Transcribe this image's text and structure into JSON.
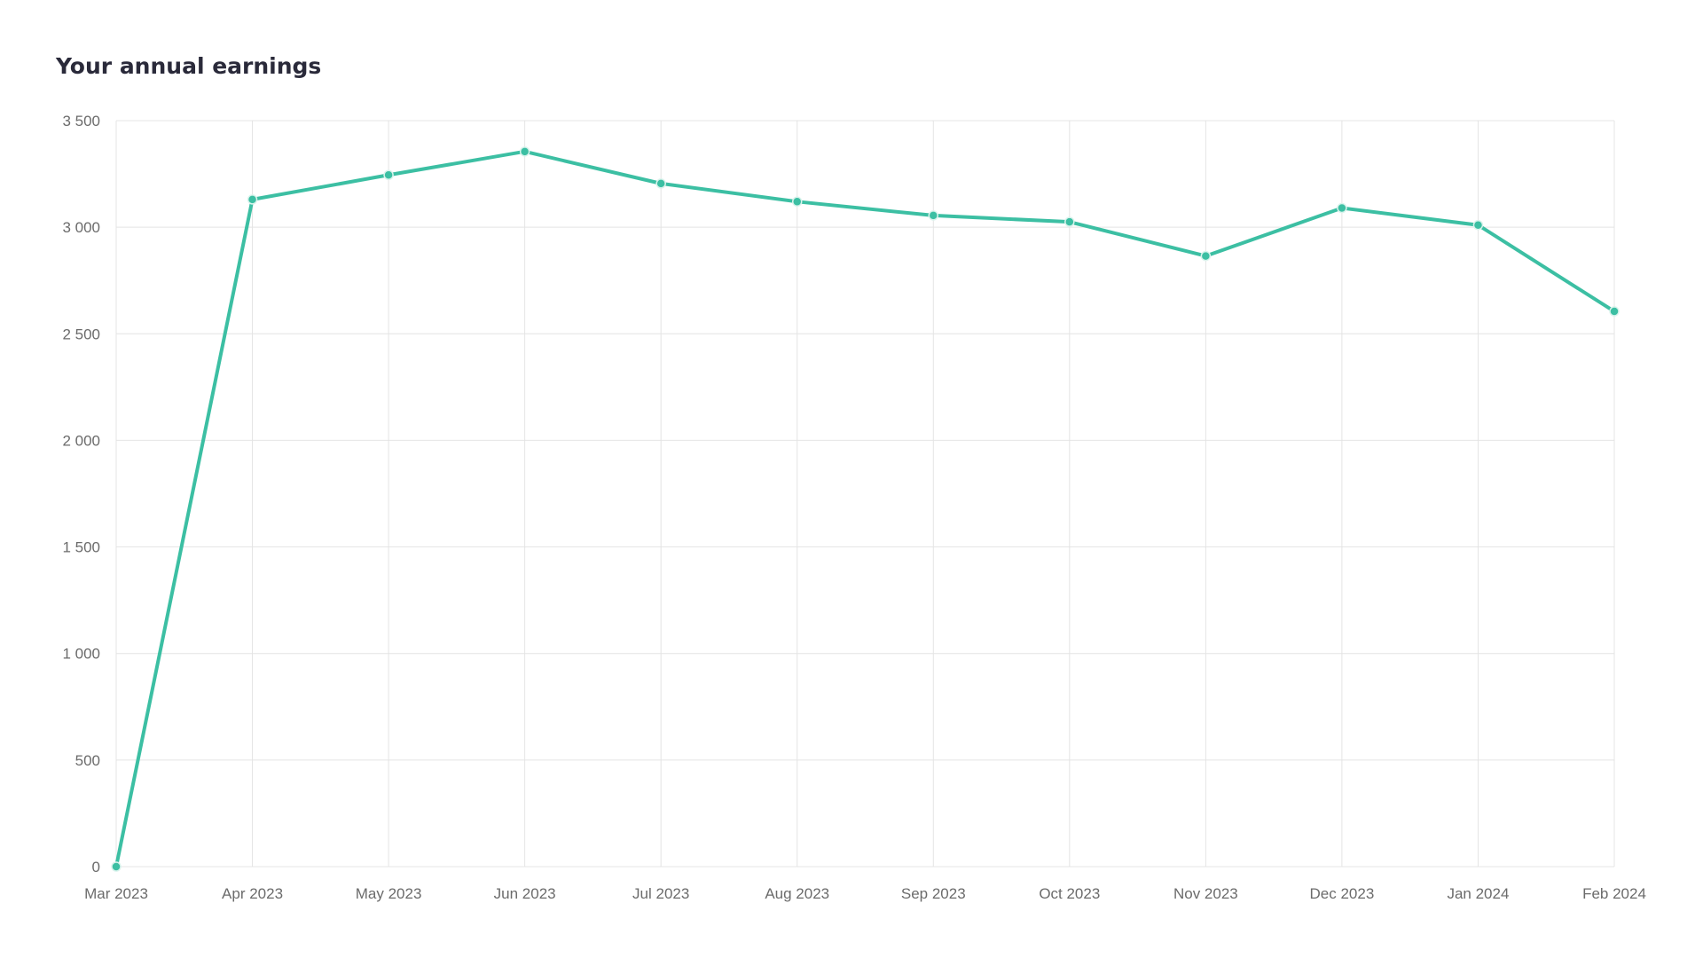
{
  "chart_data": {
    "type": "line",
    "title": "Your annual earnings",
    "categories": [
      "Mar 2023",
      "Apr 2023",
      "May 2023",
      "Jun 2023",
      "Jul 2023",
      "Aug 2023",
      "Sep 2023",
      "Oct 2023",
      "Nov 2023",
      "Dec 2023",
      "Jan 2024",
      "Feb 2024"
    ],
    "series": [
      {
        "values": [
          0,
          3130,
          3245,
          3355,
          3205,
          3120,
          3055,
          3025,
          2865,
          3090,
          3010,
          2605
        ],
        "color": "#3cbfa3"
      }
    ],
    "y_ticks": [
      0,
      500,
      1000,
      1500,
      2000,
      2500,
      3000,
      3500
    ],
    "y_tick_labels": [
      "0",
      "500",
      "1 000",
      "1 500",
      "2 000",
      "2 500",
      "3 000",
      "3 500"
    ],
    "ylim": [
      0,
      3500
    ],
    "xlabel": "",
    "ylabel": "",
    "grid": true,
    "legend": "none"
  }
}
